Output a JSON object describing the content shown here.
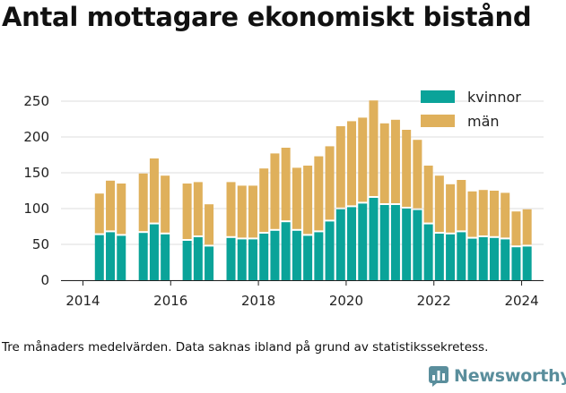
{
  "title": "Antal mottagare ekonomiskt bistånd",
  "caption": "Tre månaders medelvärden. Data saknas ibland på grund av statistikssekretess.",
  "brand": {
    "name": "Newsworthy",
    "icon": "newsworthy-logo-icon",
    "color": "#5a8e9c"
  },
  "colors": {
    "kvinnor": "#0aa399",
    "man": "#dfb05b",
    "grid": "#dddddd"
  },
  "chart_data": {
    "type": "bar",
    "stacked": true,
    "title": "",
    "xlabel": "",
    "ylabel": "",
    "ylim": [
      0,
      260
    ],
    "xlim": [
      2013.5,
      2024.5
    ],
    "yticks": [
      0,
      50,
      100,
      150,
      200,
      250
    ],
    "xticks": [
      2014,
      2016,
      2018,
      2020,
      2022,
      2024
    ],
    "grid": true,
    "legend": "top-right",
    "x": [
      2014.375,
      2014.625,
      2014.875,
      2015.375,
      2015.625,
      2015.875,
      2016.375,
      2016.625,
      2016.875,
      2017.375,
      2017.625,
      2017.875,
      2018.125,
      2018.375,
      2018.625,
      2018.875,
      2019.125,
      2019.375,
      2019.625,
      2019.875,
      2020.125,
      2020.375,
      2020.625,
      2020.875,
      2021.125,
      2021.375,
      2021.625,
      2021.875,
      2022.125,
      2022.375,
      2022.625,
      2022.875,
      2023.125,
      2023.375,
      2023.625,
      2023.875,
      2024.125
    ],
    "series": [
      {
        "name": "kvinnor",
        "values": [
          63,
          67,
          62,
          66,
          78,
          64,
          55,
          60,
          47,
          59,
          57,
          57,
          65,
          69,
          81,
          69,
          62,
          67,
          82,
          99,
          102,
          107,
          115,
          105,
          105,
          100,
          98,
          78,
          65,
          64,
          67,
          58,
          60,
          59,
          57,
          46,
          47
        ]
      },
      {
        "name": "män",
        "values": [
          58,
          72,
          73,
          83,
          92,
          82,
          80,
          77,
          59,
          78,
          75,
          75,
          91,
          108,
          104,
          88,
          98,
          106,
          105,
          116,
          120,
          120,
          136,
          114,
          119,
          110,
          98,
          82,
          81,
          70,
          73,
          66,
          66,
          66,
          65,
          50,
          52
        ]
      }
    ]
  }
}
